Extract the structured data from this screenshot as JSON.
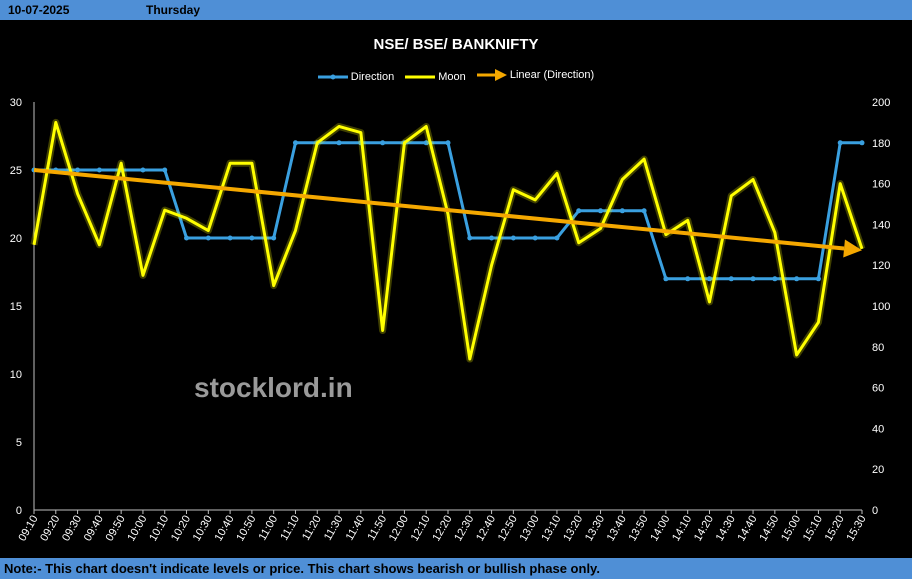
{
  "header": {
    "date": "10-07-2025",
    "day": "Thursday"
  },
  "note": "Note:- This chart doesn't indicate levels or price. This chart shows bearish or bullish phase only.",
  "watermark": "stocklord.in",
  "chart_data": {
    "type": "line",
    "title": "NSE/ BSE/ BANKNIFTY",
    "legend_position": "top",
    "grid": false,
    "x": [
      "09:10",
      "09:20",
      "09:30",
      "09:40",
      "09:50",
      "10:00",
      "10:10",
      "10:20",
      "10:30",
      "10:40",
      "10:50",
      "11:00",
      "11:10",
      "11:20",
      "11:30",
      "11:40",
      "11:50",
      "12:00",
      "12:10",
      "12:20",
      "12:30",
      "12:40",
      "12:50",
      "13:00",
      "13:10",
      "13:20",
      "13:30",
      "13:40",
      "13:50",
      "14:00",
      "14:10",
      "14:20",
      "14:30",
      "14:40",
      "14:50",
      "15:00",
      "15:10",
      "15:20",
      "15:30"
    ],
    "y_left": {
      "min": 0,
      "max": 30,
      "ticks": [
        0,
        5,
        10,
        15,
        20,
        25,
        30
      ]
    },
    "y_right": {
      "min": 0,
      "max": 200,
      "ticks": [
        0,
        20,
        40,
        60,
        80,
        100,
        120,
        140,
        160,
        180,
        200
      ]
    },
    "series": [
      {
        "name": "Direction",
        "axis": "left",
        "color": "#3aa0e0",
        "values": [
          25,
          25,
          25,
          25,
          25,
          25,
          25,
          20,
          20,
          20,
          20,
          20,
          27,
          27,
          27,
          27,
          27,
          27,
          27,
          27,
          20,
          20,
          20,
          20,
          20,
          22,
          22,
          22,
          22,
          17,
          17,
          17,
          17,
          17,
          17,
          17,
          17,
          27,
          27
        ]
      },
      {
        "name": "Moon",
        "axis": "right",
        "color": "#ffff00",
        "values": [
          130,
          190,
          155,
          130,
          170,
          115,
          147,
          143,
          137,
          170,
          170,
          110,
          137,
          180,
          188,
          185,
          88,
          180,
          188,
          145,
          74,
          120,
          157,
          152,
          165,
          131,
          138,
          162,
          172,
          135,
          142,
          102,
          154,
          162,
          136,
          76,
          92,
          160,
          128
        ]
      },
      {
        "name": "Linear (Direction)",
        "axis": "left",
        "color": "#f5a800",
        "trend": true,
        "start": 25.0,
        "end": 19.1
      }
    ]
  }
}
